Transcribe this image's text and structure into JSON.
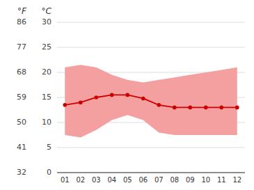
{
  "chart_data": {
    "type": "line",
    "categories": [
      "01",
      "02",
      "03",
      "04",
      "05",
      "06",
      "07",
      "08",
      "09",
      "10",
      "11",
      "12"
    ],
    "series": [
      {
        "type": "band",
        "color": "#f4a0a0",
        "values": [
          21.0,
          21.5,
          21.0,
          19.5,
          18.5,
          18.0,
          18.5,
          19.0,
          19.5,
          20.0,
          20.5,
          21.0
        ],
        "low": [
          7.5,
          7.0,
          8.5,
          10.5,
          11.5,
          10.5,
          8.0,
          7.5,
          7.5,
          7.5,
          7.5,
          7.5
        ]
      },
      {
        "type": "line",
        "color": "#cc0000",
        "marker": "circle",
        "values": [
          13.5,
          14.0,
          15.0,
          15.5,
          15.5,
          14.8,
          13.5,
          13.0,
          13.0,
          13.0,
          13.0,
          13.0
        ]
      }
    ],
    "ylabel": "°C",
    "ylim": [
      0,
      30
    ],
    "yticks": [
      0,
      5,
      10,
      15,
      20,
      25,
      30
    ],
    "y2label": "°F",
    "y2lim": [
      32,
      86
    ],
    "y2ticks": [
      32,
      41,
      50,
      59,
      68,
      77,
      86
    ],
    "grid": true
  }
}
